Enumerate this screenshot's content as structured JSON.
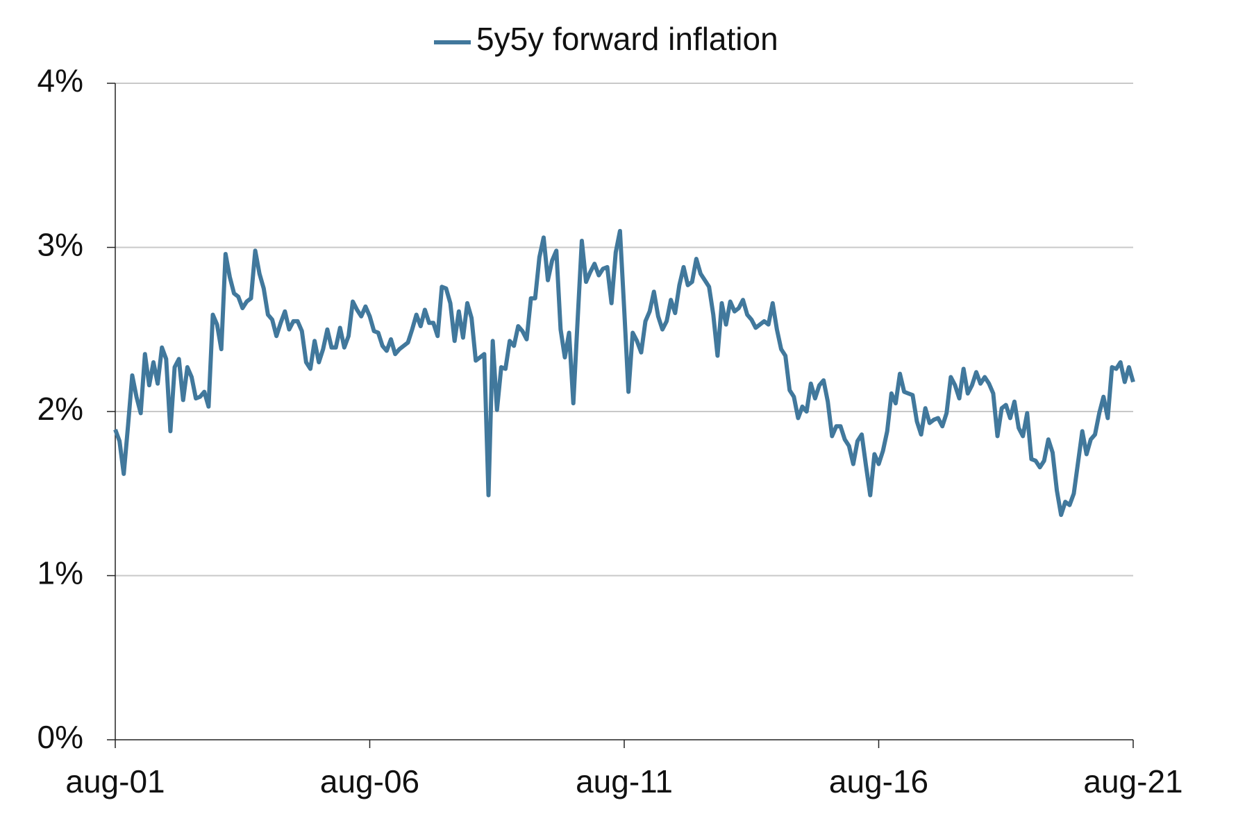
{
  "chart_data": {
    "type": "line",
    "x": [
      "2001-08",
      "2001-09",
      "2001-10",
      "2001-11",
      "2001-12",
      "2002-01",
      "2002-02",
      "2002-03",
      "2002-04",
      "2002-05",
      "2002-06",
      "2002-07",
      "2002-08",
      "2002-09",
      "2002-10",
      "2002-11",
      "2002-12",
      "2003-01",
      "2003-02",
      "2003-03",
      "2003-04",
      "2003-05",
      "2003-06",
      "2003-07",
      "2003-08",
      "2003-09",
      "2003-10",
      "2003-11",
      "2003-12",
      "2004-01",
      "2004-02",
      "2004-03",
      "2004-04",
      "2004-05",
      "2004-06",
      "2004-07",
      "2004-08",
      "2004-09",
      "2004-10",
      "2004-11",
      "2004-12",
      "2005-01",
      "2005-02",
      "2005-03",
      "2005-04",
      "2005-05",
      "2005-06",
      "2005-07",
      "2005-08",
      "2005-09",
      "2005-10",
      "2005-11",
      "2005-12",
      "2006-01",
      "2006-02",
      "2006-03",
      "2006-04",
      "2006-05",
      "2006-06",
      "2006-07",
      "2006-08",
      "2006-09",
      "2006-10",
      "2006-11",
      "2006-12",
      "2007-01",
      "2007-02",
      "2007-03",
      "2007-04",
      "2007-05",
      "2007-06",
      "2007-07",
      "2007-08",
      "2007-09",
      "2007-10",
      "2007-11",
      "2007-12",
      "2008-01",
      "2008-02",
      "2008-03",
      "2008-04",
      "2008-05",
      "2008-06",
      "2008-07",
      "2008-08",
      "2008-09",
      "2008-10",
      "2008-11",
      "2008-12",
      "2009-01",
      "2009-02",
      "2009-03",
      "2009-04",
      "2009-05",
      "2009-06",
      "2009-07",
      "2009-08",
      "2009-09",
      "2009-10",
      "2009-11",
      "2009-12",
      "2010-01",
      "2010-02",
      "2010-03",
      "2010-04",
      "2010-05",
      "2010-06",
      "2010-07",
      "2010-08",
      "2010-09",
      "2010-10",
      "2010-11",
      "2010-12",
      "2011-01",
      "2011-02",
      "2011-03",
      "2011-04",
      "2011-05",
      "2011-06",
      "2011-07",
      "2011-08",
      "2011-09",
      "2011-10",
      "2011-11",
      "2011-12",
      "2012-01",
      "2012-02",
      "2012-03",
      "2012-04",
      "2012-05",
      "2012-06",
      "2012-07",
      "2012-08",
      "2012-09",
      "2012-10",
      "2012-11",
      "2012-12",
      "2013-01",
      "2013-02",
      "2013-03",
      "2013-04",
      "2013-05",
      "2013-06",
      "2013-07",
      "2013-08",
      "2013-09",
      "2013-10",
      "2013-11",
      "2013-12",
      "2014-01",
      "2014-02",
      "2014-03",
      "2014-04",
      "2014-05",
      "2014-06",
      "2014-07",
      "2014-08",
      "2014-09",
      "2014-10",
      "2014-11",
      "2014-12",
      "2015-01",
      "2015-02",
      "2015-03",
      "2015-04",
      "2015-05",
      "2015-06",
      "2015-07",
      "2015-08",
      "2015-09",
      "2015-10",
      "2015-11",
      "2015-12",
      "2016-01",
      "2016-02",
      "2016-03",
      "2016-04",
      "2016-05",
      "2016-06",
      "2016-07",
      "2016-08",
      "2016-09",
      "2016-10",
      "2016-11",
      "2016-12",
      "2017-01",
      "2017-02",
      "2017-03",
      "2017-04",
      "2017-05",
      "2017-06",
      "2017-07",
      "2017-08",
      "2017-09",
      "2017-10",
      "2017-11",
      "2017-12",
      "2018-01",
      "2018-02",
      "2018-03",
      "2018-04",
      "2018-05",
      "2018-06",
      "2018-07",
      "2018-08",
      "2018-09",
      "2018-10",
      "2018-11",
      "2018-12",
      "2019-01",
      "2019-02",
      "2019-03",
      "2019-04",
      "2019-05",
      "2019-06",
      "2019-07",
      "2019-08",
      "2019-09",
      "2019-10",
      "2019-11",
      "2019-12",
      "2020-01",
      "2020-02",
      "2020-03",
      "2020-04",
      "2020-05",
      "2020-06",
      "2020-07",
      "2020-08",
      "2020-09",
      "2020-10",
      "2020-11",
      "2020-12",
      "2021-01",
      "2021-02",
      "2021-03",
      "2021-04",
      "2021-05",
      "2021-06",
      "2021-07",
      "2021-08"
    ],
    "series": [
      {
        "name": "5y5y forward inflation",
        "color": "#41789c",
        "values": [
          1.89,
          1.82,
          1.62,
          1.91,
          2.22,
          2.09,
          1.99,
          2.35,
          2.16,
          2.3,
          2.17,
          2.39,
          2.32,
          1.88,
          2.27,
          2.32,
          2.07,
          2.27,
          2.21,
          2.08,
          2.09,
          2.12,
          2.03,
          2.59,
          2.53,
          2.38,
          2.96,
          2.82,
          2.72,
          2.7,
          2.63,
          2.67,
          2.69,
          2.98,
          2.84,
          2.75,
          2.59,
          2.56,
          2.46,
          2.54,
          2.61,
          2.5,
          2.55,
          2.55,
          2.49,
          2.3,
          2.26,
          2.43,
          2.3,
          2.38,
          2.5,
          2.39,
          2.39,
          2.51,
          2.39,
          2.46,
          2.67,
          2.62,
          2.58,
          2.64,
          2.58,
          2.49,
          2.48,
          2.4,
          2.37,
          2.44,
          2.35,
          2.38,
          2.4,
          2.42,
          2.5,
          2.59,
          2.52,
          2.62,
          2.54,
          2.54,
          2.46,
          2.76,
          2.75,
          2.66,
          2.43,
          2.61,
          2.45,
          2.66,
          2.57,
          2.31,
          2.33,
          2.35,
          1.49,
          2.43,
          2.01,
          2.27,
          2.26,
          2.43,
          2.4,
          2.52,
          2.49,
          2.44,
          2.69,
          2.69,
          2.94,
          3.06,
          2.8,
          2.92,
          2.98,
          2.5,
          2.33,
          2.48,
          2.05,
          2.55,
          3.04,
          2.79,
          2.85,
          2.9,
          2.83,
          2.87,
          2.88,
          2.66,
          2.97,
          3.1,
          2.62,
          2.12,
          2.48,
          2.43,
          2.36,
          2.55,
          2.61,
          2.73,
          2.58,
          2.5,
          2.55,
          2.68,
          2.6,
          2.77,
          2.88,
          2.77,
          2.79,
          2.93,
          2.84,
          2.8,
          2.76,
          2.59,
          2.34,
          2.66,
          2.53,
          2.67,
          2.61,
          2.63,
          2.68,
          2.59,
          2.56,
          2.51,
          2.53,
          2.55,
          2.53,
          2.66,
          2.5,
          2.38,
          2.34,
          2.13,
          2.09,
          1.96,
          2.03,
          2.0,
          2.17,
          2.08,
          2.16,
          2.19,
          2.06,
          1.85,
          1.91,
          1.91,
          1.83,
          1.79,
          1.68,
          1.82,
          1.86,
          1.67,
          1.49,
          1.74,
          1.68,
          1.76,
          1.88,
          2.11,
          2.05,
          2.23,
          2.12,
          2.11,
          2.1,
          1.94,
          1.86,
          2.02,
          1.93,
          1.95,
          1.96,
          1.91,
          1.99,
          2.21,
          2.16,
          2.08,
          2.26,
          2.11,
          2.16,
          2.24,
          2.17,
          2.21,
          2.17,
          2.11,
          1.85,
          2.02,
          2.04,
          1.96,
          2.06,
          1.9,
          1.85,
          1.99,
          1.71,
          1.7,
          1.66,
          1.7,
          1.83,
          1.75,
          1.52,
          1.37,
          1.45,
          1.43,
          1.5,
          1.69,
          1.88,
          1.74,
          1.83,
          1.86,
          1.99,
          2.09,
          1.96,
          2.27,
          2.26,
          2.3,
          2.18,
          2.27,
          2.18
        ]
      }
    ],
    "xlim": [
      "2001-08",
      "2021-08"
    ],
    "xticks": [
      {
        "value": "2001-08",
        "label": "aug-01"
      },
      {
        "value": "2006-08",
        "label": "aug-06"
      },
      {
        "value": "2011-08",
        "label": "aug-11"
      },
      {
        "value": "2016-08",
        "label": "aug-16"
      },
      {
        "value": "2021-08",
        "label": "aug-21"
      }
    ],
    "ylim": [
      0,
      4
    ],
    "yticks": [
      {
        "value": 0,
        "label": "0%"
      },
      {
        "value": 1,
        "label": "1%"
      },
      {
        "value": 2,
        "label": "2%"
      },
      {
        "value": 3,
        "label": "3%"
      },
      {
        "value": 4,
        "label": "4%"
      }
    ],
    "grid": true,
    "legend": "top"
  }
}
